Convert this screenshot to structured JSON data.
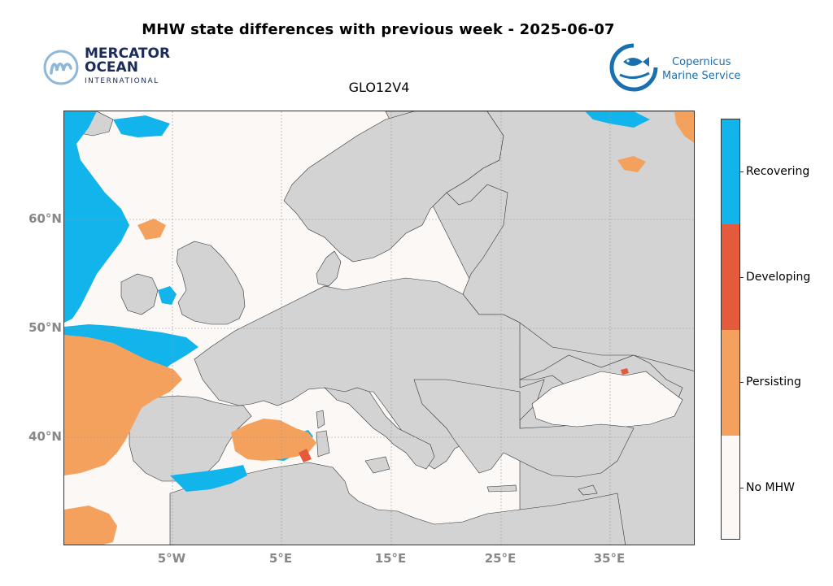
{
  "title": "MHW state differences with previous week - 2025-06-07",
  "subtitle": "GLO12V4",
  "logos": {
    "mercator": {
      "line1": "MERCATOR",
      "line2": "OCEAN",
      "line3": "INTERNATIONAL",
      "icon": "mercator-m-icon"
    },
    "copernicus": {
      "line1": "Copernicus",
      "line2": "Marine Service",
      "icon": "fish-icon"
    }
  },
  "map": {
    "lat_labels": [
      "60°N",
      "50°N",
      "40°N"
    ],
    "lon_labels": [
      "5°W",
      "5°E",
      "15°E",
      "25°E",
      "35°E"
    ],
    "lon_range": [
      -14.5,
      43
    ],
    "lat_range": [
      30,
      70
    ]
  },
  "colors": {
    "land": "#d3d3d3",
    "sea": "#fcf8f5",
    "recovering": "#12b4ec",
    "developing": "#e55a3c",
    "persisting": "#f4a15e",
    "no_mhw": "#fcf8f5"
  },
  "legend": [
    {
      "label": "Recovering",
      "color": "#12b4ec"
    },
    {
      "label": "Developing",
      "color": "#e55a3c"
    },
    {
      "label": "Persisting",
      "color": "#f4a15e"
    },
    {
      "label": "No MHW",
      "color": "#fcf8f5"
    }
  ]
}
